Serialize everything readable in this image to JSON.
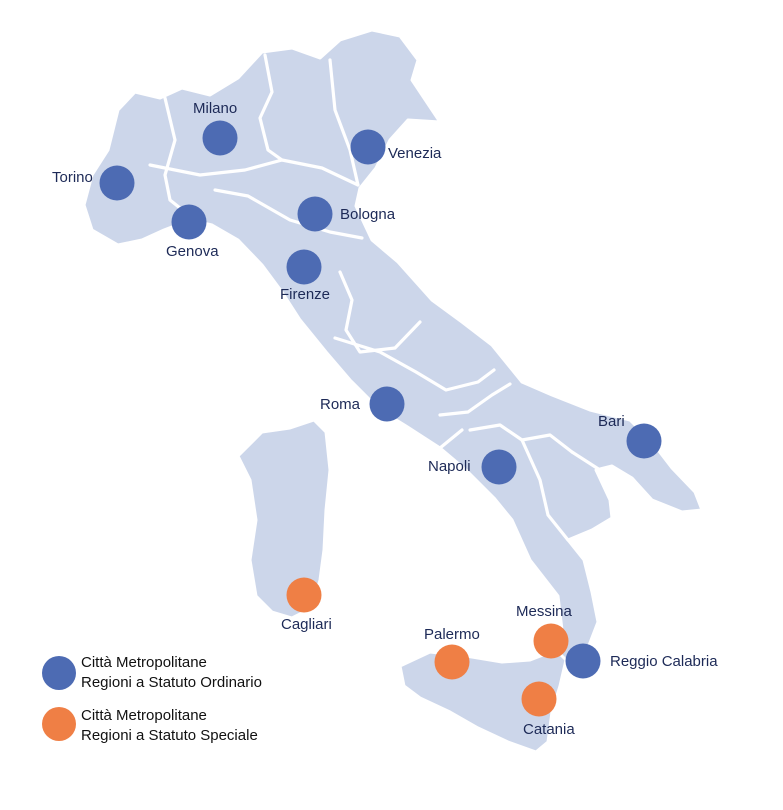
{
  "colors": {
    "ordinario": "#4d6bb3",
    "speciale": "#ef7f45",
    "land": "#ccd6ea",
    "label": "#1d2a57"
  },
  "cities": [
    {
      "id": "milano",
      "name": "Milano",
      "type": "ordinario"
    },
    {
      "id": "venezia",
      "name": "Venezia",
      "type": "ordinario"
    },
    {
      "id": "torino",
      "name": "Torino",
      "type": "ordinario"
    },
    {
      "id": "genova",
      "name": "Genova",
      "type": "ordinario"
    },
    {
      "id": "bologna",
      "name": "Bologna",
      "type": "ordinario"
    },
    {
      "id": "firenze",
      "name": "Firenze",
      "type": "ordinario"
    },
    {
      "id": "roma",
      "name": "Roma",
      "type": "ordinario"
    },
    {
      "id": "napoli",
      "name": "Napoli",
      "type": "ordinario"
    },
    {
      "id": "bari",
      "name": "Bari",
      "type": "ordinario"
    },
    {
      "id": "reggio-calabria",
      "name": "Reggio Calabria",
      "type": "ordinario"
    },
    {
      "id": "cagliari",
      "name": "Cagliari",
      "type": "speciale"
    },
    {
      "id": "palermo",
      "name": "Palermo",
      "type": "speciale"
    },
    {
      "id": "messina",
      "name": "Messina",
      "type": "speciale"
    },
    {
      "id": "catania",
      "name": "Catania",
      "type": "speciale"
    }
  ],
  "legend": {
    "ordinario": {
      "line1": "Città Metropolitane",
      "line2": "Regioni a Statuto Ordinario"
    },
    "speciale": {
      "line1": "Città Metropolitane",
      "line2": "Regioni a Statuto Speciale"
    }
  }
}
